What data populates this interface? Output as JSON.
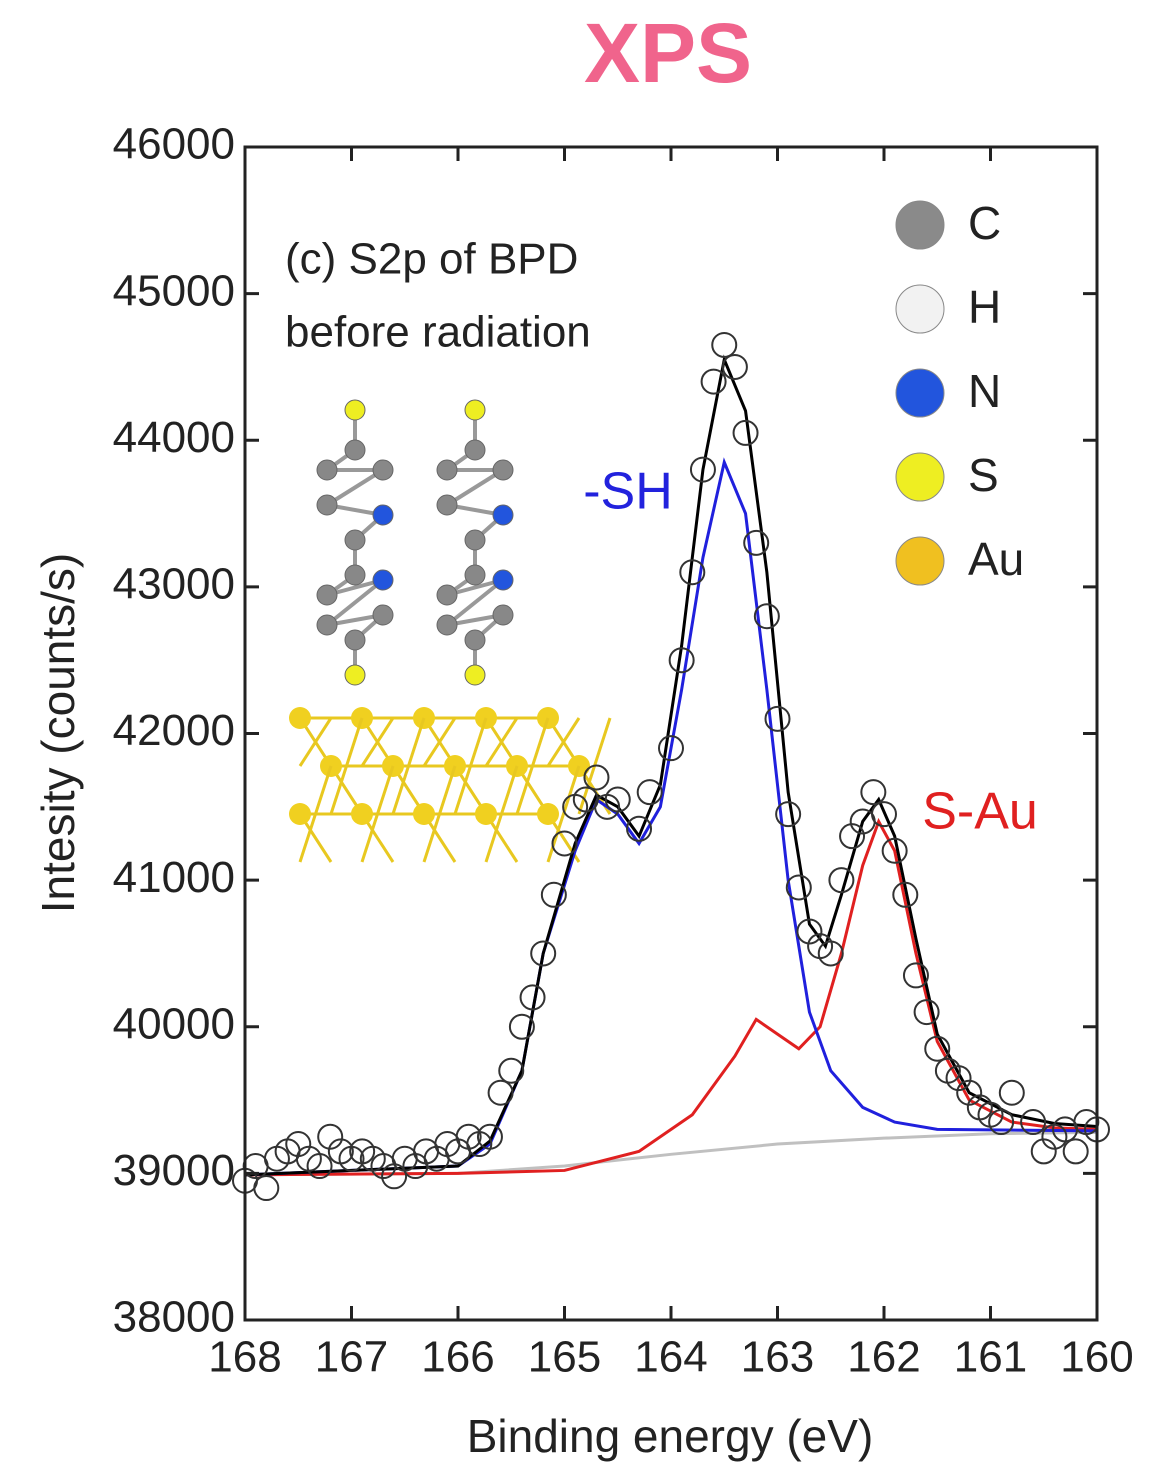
{
  "chart_data": {
    "type": "line",
    "title": "XPS",
    "title_color": "#f0648c",
    "xlabel": "Binding energy (eV)",
    "ylabel": "Intesity (counts/s)",
    "xlim": [
      168,
      160
    ],
    "ylim": [
      38000,
      46000
    ],
    "xticks": [
      168,
      167,
      166,
      165,
      164,
      163,
      162,
      161,
      160
    ],
    "yticks": [
      38000,
      39000,
      40000,
      41000,
      42000,
      43000,
      44000,
      45000,
      46000
    ],
    "caption": [
      "(c) S2p of BPD",
      "before radiation"
    ],
    "annotations": [
      {
        "text": "-SH",
        "color": "#2222dd"
      },
      {
        "text": "S-Au",
        "color": "#e02020"
      }
    ],
    "legend_atoms": [
      {
        "label": "C",
        "color": "#8a8a8a"
      },
      {
        "label": "H",
        "color": "#f2f2f2"
      },
      {
        "label": "N",
        "color": "#2255dd"
      },
      {
        "label": "S",
        "color": "#eeee22"
      },
      {
        "label": "Au",
        "color": "#f0c020"
      }
    ],
    "series": [
      {
        "style": "line",
        "color": "#c0c0c0",
        "x": [
          168,
          166,
          165,
          164,
          163,
          162,
          161,
          160
        ],
        "values": [
          38990,
          39000,
          39050,
          39130,
          39200,
          39240,
          39270,
          39280
        ]
      },
      {
        "style": "line",
        "color": "#e02020",
        "x": [
          168,
          166,
          165,
          164.3,
          163.8,
          163.4,
          163.2,
          163.0,
          162.8,
          162.6,
          162.4,
          162.2,
          162.05,
          161.9,
          161.7,
          161.5,
          161.2,
          160.8,
          160.4,
          160
        ],
        "values": [
          38990,
          39000,
          39020,
          39150,
          39400,
          39800,
          40050,
          39950,
          39850,
          40000,
          40500,
          41100,
          41400,
          41200,
          40500,
          39900,
          39500,
          39350,
          39310,
          39300
        ]
      },
      {
        "style": "line",
        "color": "#2020dd",
        "x": [
          168,
          166,
          165.7,
          165.4,
          165.2,
          164.9,
          164.7,
          164.5,
          164.3,
          164.1,
          163.9,
          163.7,
          163.5,
          163.3,
          163.1,
          162.9,
          162.7,
          162.5,
          162.2,
          161.9,
          161.5,
          160
        ],
        "values": [
          38990,
          39050,
          39200,
          39700,
          40500,
          41200,
          41550,
          41450,
          41250,
          41500,
          42300,
          43200,
          43850,
          43500,
          42300,
          41000,
          40100,
          39700,
          39450,
          39350,
          39300,
          39290
        ]
      },
      {
        "style": "line",
        "color": "#000000",
        "x": [
          168,
          166,
          165.7,
          165.4,
          165.2,
          164.9,
          164.7,
          164.5,
          164.3,
          164.1,
          163.9,
          163.7,
          163.5,
          163.3,
          163.1,
          162.9,
          162.7,
          162.55,
          162.4,
          162.2,
          162.05,
          161.9,
          161.7,
          161.5,
          161.2,
          160.8,
          160.4,
          160
        ],
        "values": [
          38990,
          39050,
          39220,
          39700,
          40500,
          41250,
          41580,
          41500,
          41300,
          41650,
          42600,
          43800,
          44550,
          44200,
          43100,
          41600,
          40700,
          40550,
          40900,
          41400,
          41550,
          41300,
          40600,
          39950,
          39550,
          39400,
          39340,
          39320
        ]
      },
      {
        "style": "markers",
        "color": "#333333",
        "x": [
          168,
          167.9,
          167.8,
          167.7,
          167.6,
          167.5,
          167.4,
          167.3,
          167.2,
          167.1,
          167.0,
          166.9,
          166.8,
          166.7,
          166.6,
          166.5,
          166.4,
          166.3,
          166.2,
          166.1,
          166.0,
          165.9,
          165.8,
          165.7,
          165.6,
          165.5,
          165.4,
          165.3,
          165.2,
          165.1,
          165.0,
          164.9,
          164.8,
          164.7,
          164.6,
          164.5,
          164.3,
          164.2,
          164.0,
          163.9,
          163.8,
          163.7,
          163.6,
          163.5,
          163.4,
          163.3,
          163.2,
          163.1,
          163.0,
          162.9,
          162.8,
          162.7,
          162.6,
          162.5,
          162.4,
          162.3,
          162.2,
          162.1,
          162.0,
          161.9,
          161.8,
          161.7,
          161.6,
          161.5,
          161.4,
          161.3,
          161.2,
          161.1,
          161.0,
          160.9,
          160.8,
          160.6,
          160.5,
          160.4,
          160.3,
          160.2,
          160.1,
          160.0
        ],
        "values": [
          38950,
          39050,
          38900,
          39100,
          39150,
          39200,
          39100,
          39050,
          39250,
          39150,
          39100,
          39150,
          39100,
          39050,
          38980,
          39100,
          39050,
          39150,
          39100,
          39200,
          39150,
          39250,
          39200,
          39250,
          39550,
          39700,
          40000,
          40200,
          40500,
          40900,
          41250,
          41500,
          41550,
          41700,
          41500,
          41550,
          41350,
          41600,
          41900,
          42500,
          43100,
          43800,
          44400,
          44650,
          44500,
          44050,
          43300,
          42800,
          42100,
          41450,
          40950,
          40650,
          40550,
          40500,
          41000,
          41300,
          41400,
          41600,
          41450,
          41200,
          40900,
          40350,
          40100,
          39850,
          39700,
          39650,
          39550,
          39450,
          39400,
          39350,
          39550,
          39350,
          39150,
          39250,
          39300,
          39150,
          39350,
          39300
        ]
      }
    ]
  }
}
